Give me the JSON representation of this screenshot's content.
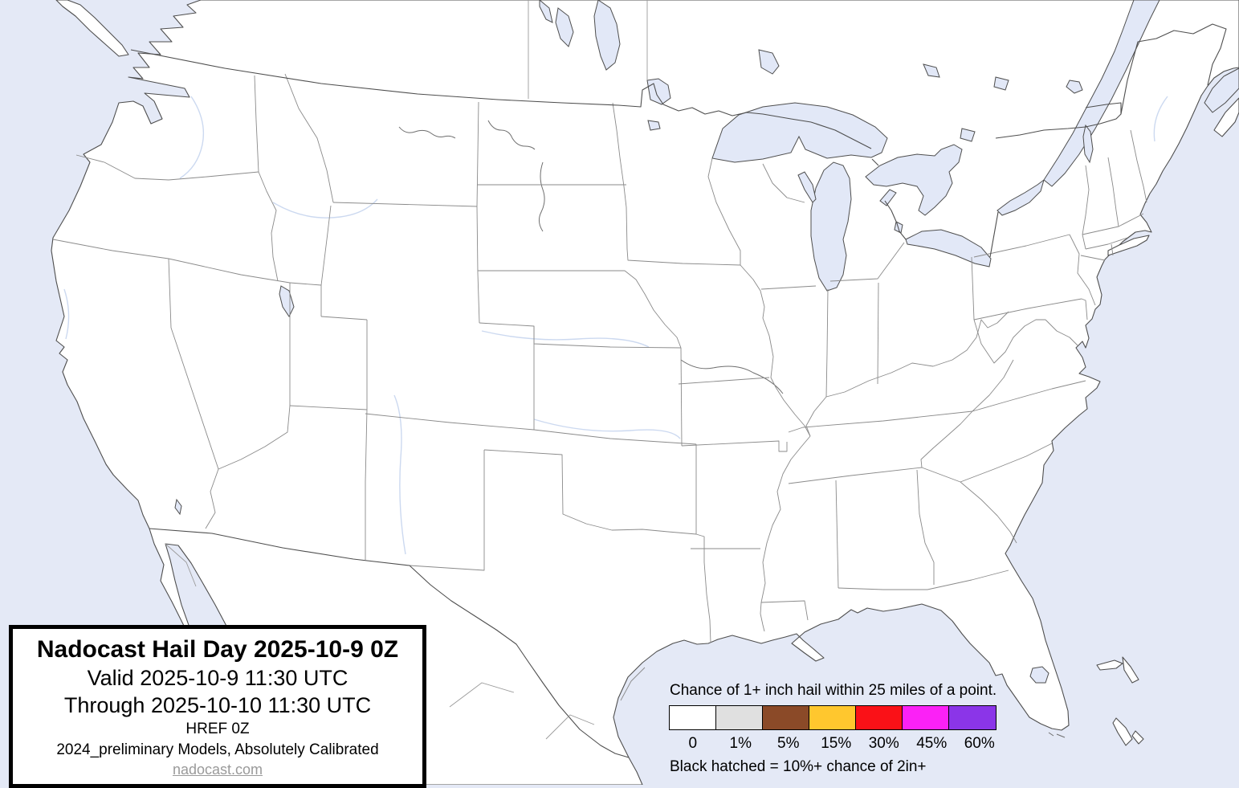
{
  "title_box": {
    "title": "Nadocast Hail Day 2025-10-9 0Z",
    "valid": "Valid 2025-10-9 11:30 UTC",
    "through": "Through 2025-10-10 11:30 UTC",
    "model": "HREF 0Z",
    "calibration": "2024_preliminary Models, Absolutely Calibrated",
    "website": "nadocast.com"
  },
  "legend": {
    "heading": "Chance of 1+ inch hail within 25 miles of a point.",
    "footnote": "Black hatched = 10%+ chance of 2in+",
    "categories": [
      {
        "label": "0",
        "color": "#ffffff"
      },
      {
        "label": "1%",
        "color": "#e0e0e0"
      },
      {
        "label": "5%",
        "color": "#8b4a28"
      },
      {
        "label": "15%",
        "color": "#ffc72e"
      },
      {
        "label": "30%",
        "color": "#fa1117"
      },
      {
        "label": "45%",
        "color": "#fb21f6"
      },
      {
        "label": "60%",
        "color": "#8b35e8"
      }
    ]
  },
  "map": {
    "colors": {
      "water": "#e4e9f6",
      "land": "#ffffff",
      "lakes": "#e2e8f7",
      "coastline": "#4e4e4e",
      "state_border": "#8a8a8a"
    }
  }
}
